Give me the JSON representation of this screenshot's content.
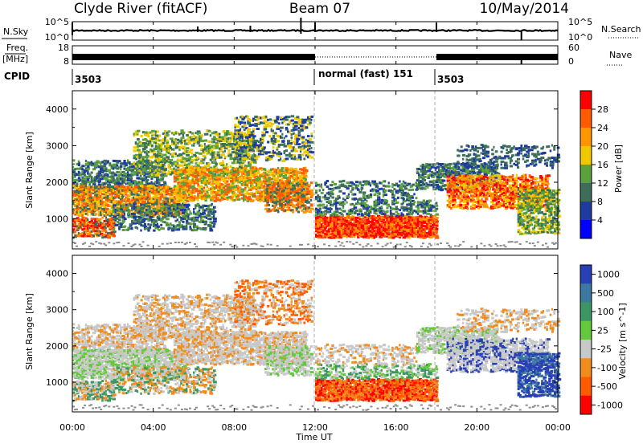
{
  "header": {
    "station": "Clyde River (fitACF)",
    "beam": "Beam 07",
    "date": "10/May/2014"
  },
  "panel_nsky": {
    "left_label": "N.Sky",
    "right_label": "N.Search",
    "left_ticks": [
      "10^5",
      "10^0"
    ],
    "right_ticks": [
      "10^5",
      "10^0"
    ]
  },
  "panel_freq": {
    "left_label": "Freq.",
    "left_unit": "[MHz]",
    "right_label": "Nave",
    "left_ticks": [
      "18",
      "8"
    ],
    "right_ticks": [
      "60",
      "0"
    ]
  },
  "cpid": {
    "label": "CPID",
    "segments": [
      {
        "label": "3503",
        "start": "00:00"
      },
      {
        "label": "normal (fast) 151",
        "start": "12:00"
      },
      {
        "label": "3503",
        "start": "18:00"
      }
    ]
  },
  "x_axis": {
    "title": "Time UT",
    "ticks": [
      "00:00",
      "04:00",
      "08:00",
      "12:00",
      "16:00",
      "20:00",
      "00:00"
    ]
  },
  "chart_data": [
    {
      "type": "heatmap",
      "title": "",
      "quantity": "Power",
      "colorbar_label": "Power [dB]",
      "colorbar_ticks": [
        "28",
        "24",
        "20",
        "16",
        "12",
        "8",
        "4"
      ],
      "colorbar_colors": [
        "#ff0000",
        "#ff5a00",
        "#ff9600",
        "#f0c800",
        "#5aa03c",
        "#3c6e5a",
        "#1e3ca0",
        "#0000ff"
      ],
      "xlabel": "Time UT",
      "ylabel": "Slant Range [km]",
      "x_range_hours": [
        0,
        24
      ],
      "ylim": [
        180,
        4500
      ],
      "yticks": [
        1000,
        2000,
        3000,
        4000
      ],
      "grid": false
    },
    {
      "type": "heatmap",
      "title": "",
      "quantity": "Velocity",
      "colorbar_label": "Velocity [m s^-1]",
      "colorbar_ticks": [
        "1000",
        "500",
        "100",
        "25",
        "-25",
        "-100",
        "-500",
        "-1000"
      ],
      "colorbar_colors": [
        "#2840b4",
        "#3c78a0",
        "#3c9664",
        "#64c83c",
        "#c8c8c8",
        "#f08c1e",
        "#ff5a00",
        "#ff0000"
      ],
      "xlabel": "Time UT",
      "ylabel": "Slant Range [km]",
      "x_range_hours": [
        0,
        24
      ],
      "ylim": [
        180,
        4500
      ],
      "yticks": [
        1000,
        2000,
        3000,
        4000
      ],
      "grid": false
    }
  ],
  "colors": {
    "nsky_trace": "#000000",
    "mode_change_line": "#aaaaaa",
    "ground_scatter": "#8c8c8c"
  }
}
